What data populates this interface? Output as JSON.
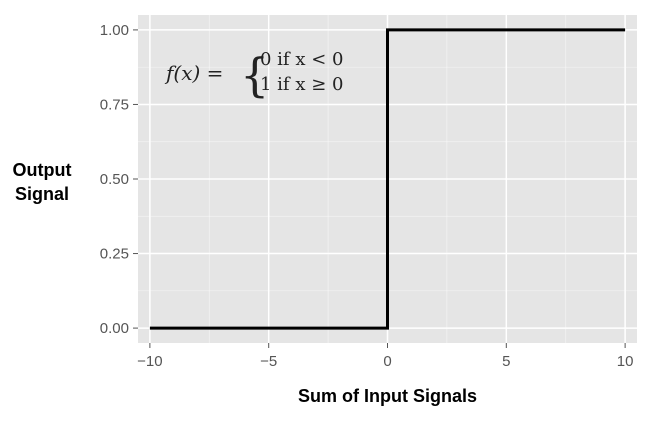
{
  "chart_data": {
    "type": "line",
    "title": "",
    "xlabel": "Sum of Input Signals",
    "ylabel_lines": [
      "Output",
      "Signal"
    ],
    "xlim": [
      -10.5,
      10.5
    ],
    "ylim": [
      -0.05,
      1.05
    ],
    "x_ticks": [
      -10,
      -5,
      0,
      5,
      10
    ],
    "x_tick_labels": [
      "−10",
      "−5",
      "0",
      "5",
      "10"
    ],
    "y_ticks": [
      0,
      0.25,
      0.5,
      0.75,
      1
    ],
    "y_tick_labels": [
      "0.00",
      "0.25",
      "0.50",
      "0.75",
      "1.00"
    ],
    "grid": true,
    "series": [
      {
        "x": [
          -10,
          0,
          0,
          10
        ],
        "y": [
          0,
          0,
          1,
          1
        ]
      }
    ],
    "annotation": {
      "lhs": "f(x) =",
      "case1": "0 if x < 0",
      "case2": "1 if x ≥ 0"
    },
    "colors": {
      "panel": "#e5e5e5",
      "grid": "#ffffff",
      "line": "#000000"
    }
  }
}
